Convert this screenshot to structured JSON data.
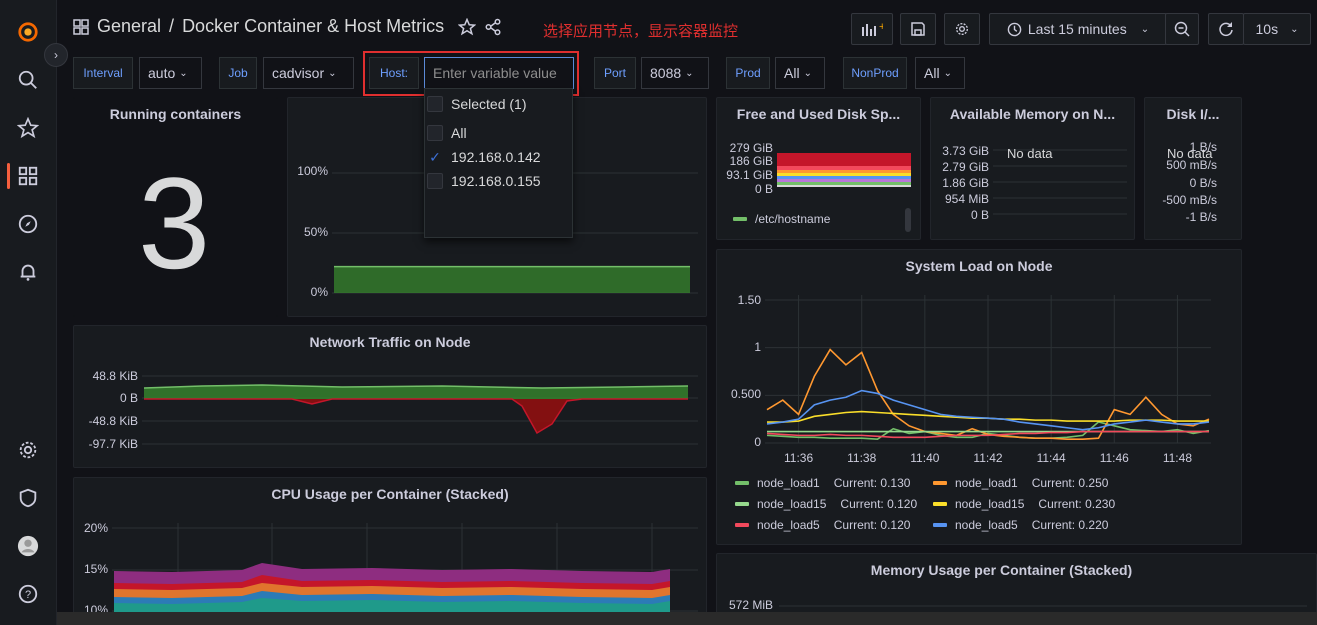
{
  "header": {
    "folder": "General",
    "title": "Docker Container & Host Metrics",
    "annotation": "选择应用节点，显示容器监控",
    "time_range": "Last 15 minutes",
    "refresh": "10s"
  },
  "variables": {
    "interval": {
      "label": "Interval",
      "value": "auto"
    },
    "job": {
      "label": "Job",
      "value": "cadvisor"
    },
    "host": {
      "label": "Host:",
      "placeholder": "Enter variable value"
    },
    "port": {
      "label": "Port",
      "value": "8088"
    },
    "prod": {
      "label": "Prod",
      "value": "All"
    },
    "nonprod": {
      "label": "NonProd",
      "value": "All"
    }
  },
  "host_dropdown": {
    "selected_header": "Selected (1)",
    "options": [
      {
        "label": "All",
        "checked": false
      },
      {
        "label": "192.168.0.142",
        "checked": true
      },
      {
        "label": "192.168.0.155",
        "checked": false
      }
    ]
  },
  "panels": {
    "running": {
      "title": "Running containers",
      "value": "3"
    },
    "cpu_gauge": {
      "ticks": [
        "100%",
        "50%",
        "0%"
      ],
      "level_percent": 22
    },
    "disk": {
      "title": "Free and Used Disk Sp...",
      "ticks": [
        "279 GiB",
        "186 GiB",
        "93.1 GiB",
        "0 B"
      ],
      "legend": "/etc/hostname"
    },
    "memory": {
      "title": "Available Memory on N...",
      "ticks": [
        "3.73 GiB",
        "2.79 GiB",
        "1.86 GiB",
        "954 MiB",
        "0 B"
      ],
      "no_data": "No data"
    },
    "disk_io": {
      "title": "Disk I/...",
      "ticks": [
        "1 B/s",
        "500 mB/s",
        "0 B/s",
        "-500 mB/s",
        "-1 B/s"
      ],
      "no_data": "No data"
    },
    "network": {
      "title": "Network Traffic on Node",
      "ticks": [
        "48.8 KiB",
        "0 B",
        "-48.8 KiB",
        "-97.7 KiB"
      ]
    },
    "load": {
      "title": "System Load on Node",
      "ticks": [
        "1.50",
        "1",
        "0.500",
        "0"
      ],
      "xticks": [
        "11:36",
        "11:38",
        "11:40",
        "11:42",
        "11:44",
        "11:46",
        "11:48"
      ]
    },
    "cpu_stack": {
      "title": "CPU Usage per Container (Stacked)",
      "ticks": [
        "20%",
        "15%",
        "10%"
      ]
    },
    "mem_stack": {
      "title": "Memory Usage per Container (Stacked)",
      "ticks": [
        "572 MiB"
      ]
    }
  },
  "chart_data": {
    "type": "line",
    "title": "System Load on Node",
    "ylim": [
      0,
      1.5
    ],
    "x": [
      "11:35",
      "11:35:30",
      "11:36",
      "11:36:30",
      "11:37",
      "11:37:30",
      "11:38",
      "11:38:30",
      "11:39",
      "11:39:30",
      "11:40",
      "11:40:30",
      "11:41",
      "11:41:30",
      "11:42",
      "11:42:30",
      "11:43",
      "11:43:30",
      "11:44",
      "11:44:30",
      "11:45",
      "11:45:30",
      "11:46",
      "11:46:30",
      "11:47",
      "11:47:30",
      "11:48",
      "11:48:30",
      "11:49"
    ],
    "series": [
      {
        "name": "node_load1",
        "current": "Current: 0.130",
        "color": "#73bf69",
        "values": [
          0.08,
          0.07,
          0.06,
          0.06,
          0.05,
          0.05,
          0.05,
          0.04,
          0.15,
          0.1,
          0.12,
          0.08,
          0.06,
          0.06,
          0.1,
          0.08,
          0.06,
          0.05,
          0.05,
          0.06,
          0.08,
          0.22,
          0.18,
          0.14,
          0.13,
          0.12,
          0.14,
          0.1,
          0.13
        ]
      },
      {
        "name": "node_load1",
        "current": "Current: 0.250",
        "color": "#ff9830",
        "values": [
          0.35,
          0.45,
          0.3,
          0.7,
          0.98,
          0.82,
          0.95,
          0.55,
          0.3,
          0.18,
          0.12,
          0.1,
          0.08,
          0.15,
          0.09,
          0.07,
          0.06,
          0.05,
          0.05,
          0.04,
          0.04,
          0.05,
          0.35,
          0.3,
          0.48,
          0.3,
          0.2,
          0.18,
          0.25
        ]
      },
      {
        "name": "node_load15",
        "current": "Current: 0.120",
        "color": "#96d98d",
        "values": [
          0.12,
          0.12,
          0.12,
          0.12,
          0.12,
          0.12,
          0.12,
          0.12,
          0.12,
          0.12,
          0.12,
          0.12,
          0.12,
          0.12,
          0.12,
          0.12,
          0.12,
          0.12,
          0.12,
          0.12,
          0.12,
          0.12,
          0.12,
          0.12,
          0.12,
          0.12,
          0.12,
          0.12,
          0.12
        ]
      },
      {
        "name": "node_load15",
        "current": "Current: 0.230",
        "color": "#fade2a",
        "values": [
          0.22,
          0.22,
          0.23,
          0.28,
          0.3,
          0.32,
          0.33,
          0.32,
          0.31,
          0.3,
          0.29,
          0.28,
          0.27,
          0.26,
          0.26,
          0.25,
          0.25,
          0.24,
          0.24,
          0.23,
          0.23,
          0.23,
          0.23,
          0.24,
          0.24,
          0.24,
          0.23,
          0.23,
          0.23
        ]
      },
      {
        "name": "node_load5",
        "current": "Current: 0.120",
        "color": "#f2495c",
        "values": [
          0.1,
          0.09,
          0.08,
          0.08,
          0.09,
          0.08,
          0.08,
          0.07,
          0.06,
          0.06,
          0.06,
          0.07,
          0.08,
          0.08,
          0.08,
          0.09,
          0.1,
          0.1,
          0.11,
          0.11,
          0.12,
          0.12,
          0.12,
          0.12,
          0.12,
          0.12,
          0.12,
          0.12,
          0.12
        ]
      },
      {
        "name": "node_load5",
        "current": "Current: 0.220",
        "color": "#5794f2",
        "values": [
          0.2,
          0.22,
          0.25,
          0.4,
          0.45,
          0.48,
          0.55,
          0.52,
          0.45,
          0.4,
          0.35,
          0.3,
          0.28,
          0.27,
          0.26,
          0.25,
          0.22,
          0.2,
          0.18,
          0.16,
          0.14,
          0.16,
          0.2,
          0.22,
          0.24,
          0.22,
          0.2,
          0.2,
          0.22
        ]
      }
    ]
  }
}
